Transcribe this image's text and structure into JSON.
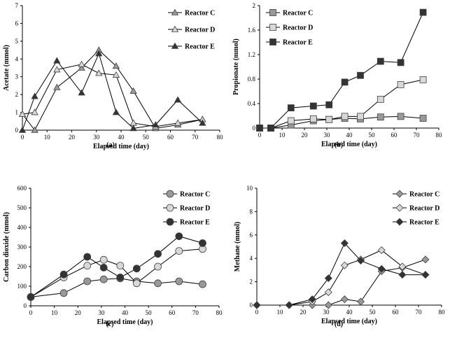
{
  "chart_data": [
    {
      "type": "line",
      "panel_label": "(a)",
      "xlabel": "Elapsed time (day)",
      "ylabel": "Acetate (mmol)",
      "xlim": [
        0,
        80
      ],
      "ylim": [
        0,
        7
      ],
      "xticks": [
        "0",
        "10",
        "20",
        "30",
        "40",
        "50",
        "60",
        "70",
        "80"
      ],
      "yticks": [
        "0",
        "1",
        "2",
        "3",
        "4",
        "5",
        "6",
        "7"
      ],
      "legend_position": "top-right",
      "marker": "triangle",
      "series": [
        {
          "name": "Reactor C",
          "x": [
            0,
            5,
            14,
            24,
            31,
            38,
            45,
            54,
            63,
            73
          ],
          "y": [
            0.9,
            0.0,
            2.4,
            3.5,
            4.5,
            3.6,
            2.2,
            0.1,
            0.3,
            0.6
          ],
          "color": "#999999"
        },
        {
          "name": "Reactor D",
          "x": [
            0,
            5,
            14,
            24,
            31,
            38,
            45,
            54,
            63,
            73
          ],
          "y": [
            0.9,
            1.0,
            3.4,
            3.7,
            3.2,
            3.1,
            0.4,
            0.2,
            0.4,
            0.6
          ],
          "color": "#d8d8d8"
        },
        {
          "name": "Reactor E",
          "x": [
            0,
            5,
            14,
            24,
            31,
            38,
            45,
            54,
            63,
            73
          ],
          "y": [
            0.0,
            1.9,
            3.9,
            2.1,
            4.3,
            1.0,
            0.1,
            0.3,
            1.7,
            0.4
          ],
          "color": "#333333"
        }
      ]
    },
    {
      "type": "line",
      "panel_label": "(b)",
      "xlabel": "Elapsed time (day)",
      "ylabel": "Propionate (mmol)",
      "xlim": [
        0,
        80
      ],
      "ylim": [
        0,
        2
      ],
      "xticks": [
        "0",
        "10",
        "20",
        "30",
        "40",
        "50",
        "60",
        "70",
        "80"
      ],
      "yticks": [
        "0",
        "0.4",
        "0.8",
        "1.2",
        "1.6",
        "2"
      ],
      "legend_position": "top-left",
      "marker": "square",
      "series": [
        {
          "name": "Reactor C",
          "x": [
            0,
            5,
            14,
            24,
            31,
            38,
            45,
            54,
            63,
            73
          ],
          "y": [
            0.0,
            0.0,
            0.05,
            0.12,
            0.14,
            0.16,
            0.15,
            0.18,
            0.19,
            0.16
          ],
          "color": "#999999"
        },
        {
          "name": "Reactor D",
          "x": [
            0,
            5,
            14,
            24,
            31,
            38,
            45,
            54,
            63,
            73
          ],
          "y": [
            0.0,
            0.0,
            0.12,
            0.15,
            0.14,
            0.19,
            0.19,
            0.47,
            0.71,
            0.79
          ],
          "color": "#d8d8d8"
        },
        {
          "name": "Reactor E",
          "x": [
            0,
            5,
            14,
            24,
            31,
            38,
            45,
            54,
            63,
            73
          ],
          "y": [
            0.0,
            0.0,
            0.33,
            0.36,
            0.38,
            0.75,
            0.86,
            1.09,
            1.07,
            1.89
          ],
          "color": "#333333"
        }
      ]
    },
    {
      "type": "line",
      "panel_label": "(c)",
      "xlabel": "Elapsed time (day)",
      "ylabel": "Carbon dioxide (mmol)",
      "xlim": [
        0,
        80
      ],
      "ylim": [
        0,
        600
      ],
      "xticks": [
        "0",
        "10",
        "20",
        "30",
        "40",
        "50",
        "60",
        "70",
        "80"
      ],
      "yticks": [
        "0",
        "100",
        "200",
        "300",
        "400",
        "500",
        "600"
      ],
      "legend_position": "top-right",
      "marker": "circle",
      "series": [
        {
          "name": "Reactor C",
          "x": [
            0,
            14,
            24,
            31,
            38,
            45,
            54,
            63,
            73
          ],
          "y": [
            45,
            65,
            125,
            135,
            140,
            125,
            115,
            125,
            110
          ],
          "color": "#999999"
        },
        {
          "name": "Reactor D",
          "x": [
            0,
            14,
            24,
            31,
            38,
            45,
            54,
            63,
            73
          ],
          "y": [
            45,
            145,
            205,
            235,
            205,
            115,
            200,
            280,
            290
          ],
          "color": "#d8d8d8"
        },
        {
          "name": "Reactor E",
          "x": [
            0,
            14,
            24,
            31,
            38,
            45,
            54,
            63,
            73
          ],
          "y": [
            45,
            160,
            250,
            195,
            145,
            190,
            265,
            355,
            320
          ],
          "color": "#333333"
        }
      ]
    },
    {
      "type": "line",
      "panel_label": "(d)",
      "xlabel": "Elapsed time (day)",
      "ylabel": "Methane (mmol)",
      "xlim": [
        0,
        80
      ],
      "ylim": [
        0,
        10
      ],
      "xticks": [
        "0",
        "10",
        "20",
        "30",
        "40",
        "50",
        "60",
        "70",
        "80"
      ],
      "yticks": [
        "0",
        "2",
        "4",
        "6",
        "8",
        "10"
      ],
      "legend_position": "top-right",
      "marker": "diamond",
      "series": [
        {
          "name": "Reactor C",
          "x": [
            0,
            14,
            24,
            31,
            38,
            45,
            54,
            63,
            73
          ],
          "y": [
            0.0,
            0.0,
            0.0,
            0.0,
            0.5,
            0.3,
            2.9,
            3.2,
            3.9
          ],
          "color": "#999999"
        },
        {
          "name": "Reactor D",
          "x": [
            0,
            14,
            24,
            31,
            38,
            45,
            54,
            63,
            73
          ],
          "y": [
            0.0,
            0.0,
            0.3,
            1.1,
            3.4,
            3.9,
            4.7,
            3.3,
            2.6
          ],
          "color": "#d8d8d8"
        },
        {
          "name": "Reactor E",
          "x": [
            0,
            14,
            24,
            31,
            38,
            45,
            54,
            63,
            73
          ],
          "y": [
            0.0,
            0.0,
            0.5,
            2.3,
            5.3,
            3.8,
            3.1,
            2.6,
            2.6
          ],
          "color": "#333333"
        }
      ]
    }
  ]
}
